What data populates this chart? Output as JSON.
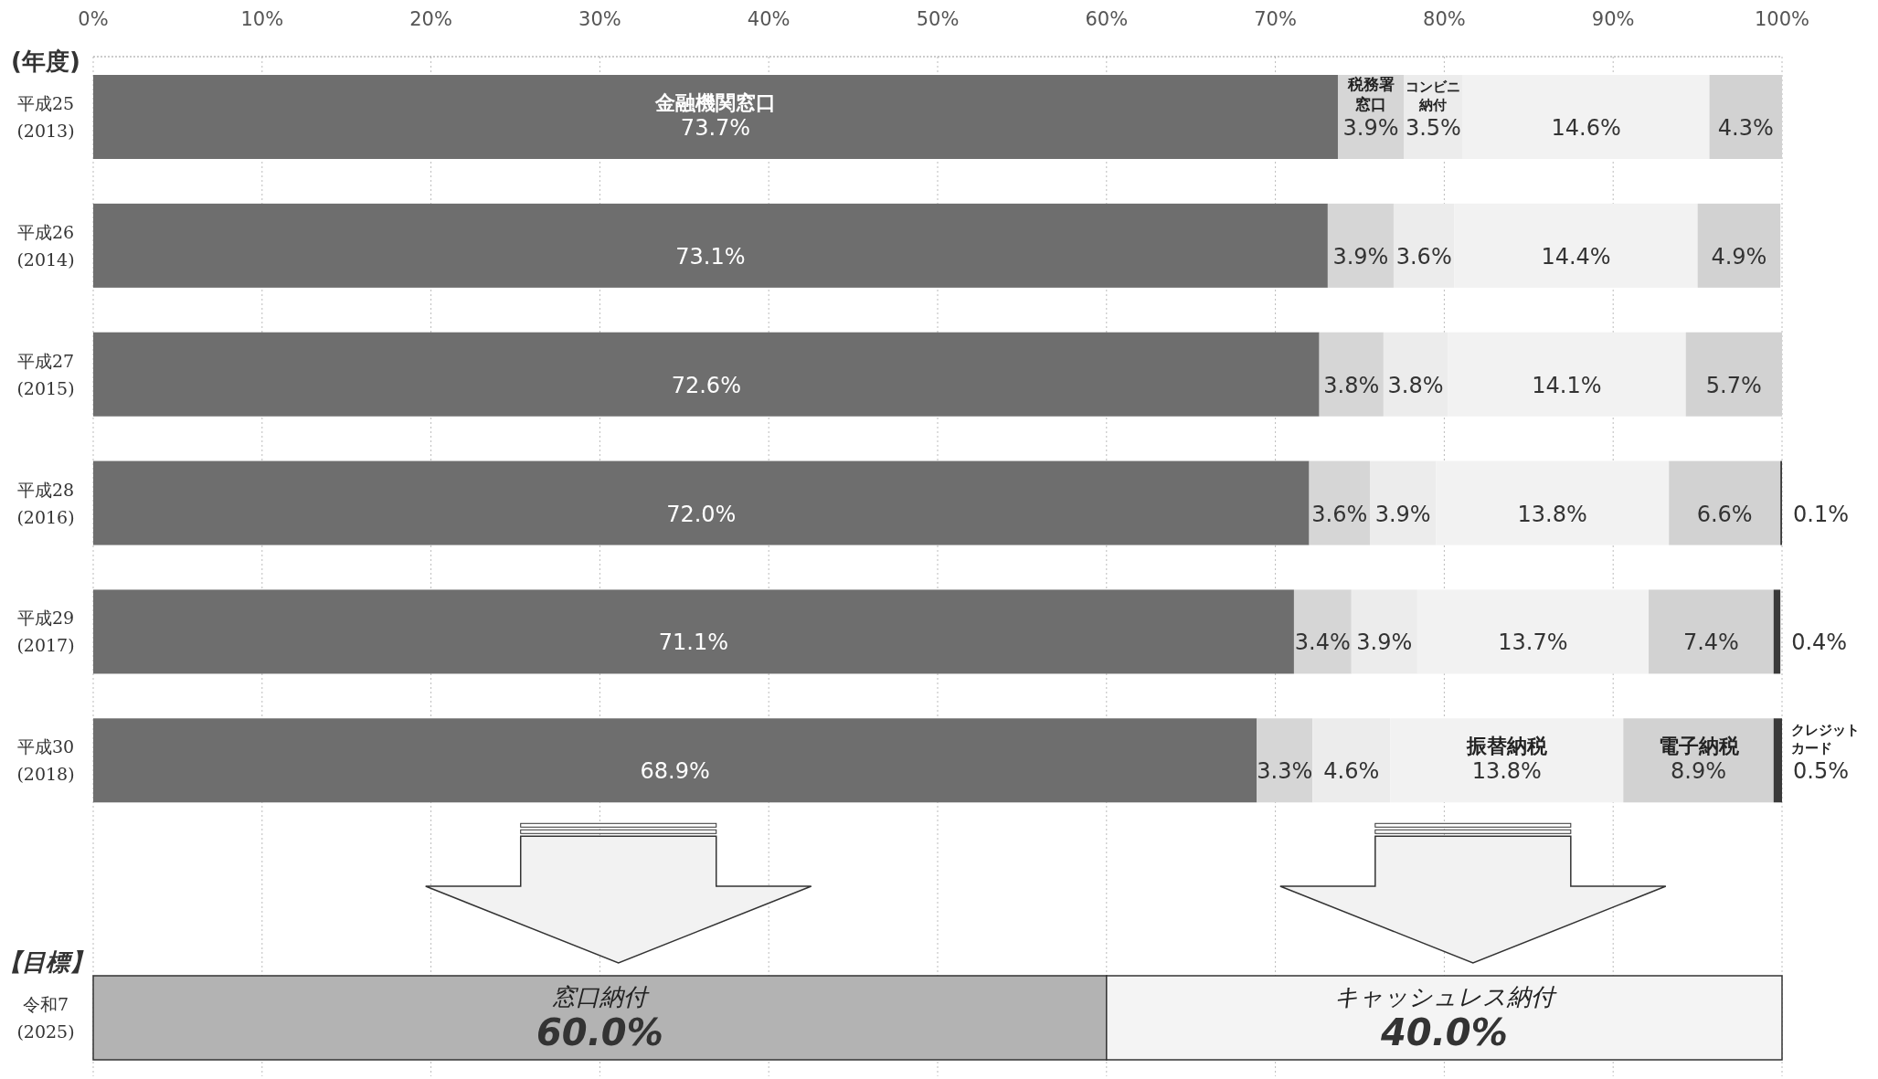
{
  "chart_data": {
    "type": "bar",
    "orientation": "horizontal",
    "stacked": true,
    "ylabel": "(年度)",
    "categories": [
      "平成25\n(2013)",
      "平成26\n(2014)",
      "平成27\n(2015)",
      "平成28\n(2016)",
      "平成29\n(2017)",
      "平成30\n(2018)",
      null,
      "令和7\n(2025)"
    ],
    "xlim": [
      0,
      100
    ],
    "xticks": [
      {
        "value": 0,
        "label": "0%"
      },
      {
        "value": 10,
        "label": "10%"
      },
      {
        "value": 20,
        "label": "20%"
      },
      {
        "value": 30,
        "label": "30%"
      },
      {
        "value": 40,
        "label": "40%"
      },
      {
        "value": 50,
        "label": "50%"
      },
      {
        "value": 60,
        "label": "60%"
      },
      {
        "value": 70,
        "label": "70%"
      },
      {
        "value": 80,
        "label": "80%"
      },
      {
        "value": 90,
        "label": "90%"
      },
      {
        "value": 100,
        "label": "100%"
      }
    ],
    "grid": "x",
    "series": [
      {
        "color": "#6e6e6e",
        "values": [
          73.7,
          73.1,
          72.6,
          72.0,
          71.1,
          68.9,
          null,
          null
        ],
        "value_labels": [
          "73.7%",
          "73.1%",
          "72.6%",
          "72.0%",
          "71.1%",
          "68.9%",
          null,
          null
        ]
      },
      {
        "color": "#d6d6d6",
        "values": [
          3.9,
          3.9,
          3.8,
          3.6,
          3.4,
          3.3,
          null,
          null
        ],
        "value_labels": [
          "3.9%",
          "3.9%",
          "3.8%",
          "3.6%",
          "3.4%",
          "3.3%",
          null,
          null
        ]
      },
      {
        "color": "#ececec",
        "values": [
          3.5,
          3.6,
          3.8,
          3.9,
          3.9,
          4.6,
          null,
          null
        ],
        "value_labels": [
          "3.5%",
          "3.6%",
          "3.8%",
          "3.9%",
          "3.9%",
          "4.6%",
          null,
          null
        ]
      },
      {
        "color": "#f2f2f2",
        "values": [
          14.6,
          14.4,
          14.1,
          13.8,
          13.7,
          13.8,
          null,
          null
        ],
        "value_labels": [
          "14.6%",
          "14.4%",
          "14.1%",
          "13.8%",
          "13.7%",
          "13.8%",
          null,
          null
        ]
      },
      {
        "color": "#d2d2d2",
        "values": [
          4.3,
          4.9,
          5.7,
          6.6,
          7.4,
          8.9,
          null,
          null
        ],
        "value_labels": [
          "4.3%",
          "4.9%",
          "5.7%",
          "6.6%",
          "7.4%",
          "8.9%",
          null,
          null
        ]
      },
      {
        "color": "#3a3a3a",
        "values": [
          null,
          null,
          null,
          0.1,
          0.4,
          0.5,
          null,
          null
        ],
        "value_labels": [
          null,
          null,
          null,
          "0.1%",
          "0.4%",
          "0.5%",
          null,
          null
        ]
      },
      {
        "color": "#b3b3b3",
        "values": [
          null,
          null,
          null,
          null,
          null,
          null,
          null,
          60.0
        ],
        "value_labels": [
          null,
          null,
          null,
          null,
          null,
          null,
          null,
          "60.0%"
        ]
      },
      {
        "color": "#f4f4f4",
        "values": [
          null,
          null,
          null,
          null,
          null,
          null,
          null,
          40.0
        ],
        "value_labels": [
          null,
          null,
          null,
          null,
          null,
          null,
          null,
          "40.0%"
        ]
      }
    ],
    "annotations": [
      "【目標】",
      "金融機関窓口",
      "税務署窓口",
      "コンビニ納付",
      "振替納税",
      "電子納税",
      "クレジットカード",
      "窓口納付",
      "キャッシュレス納付"
    ]
  }
}
